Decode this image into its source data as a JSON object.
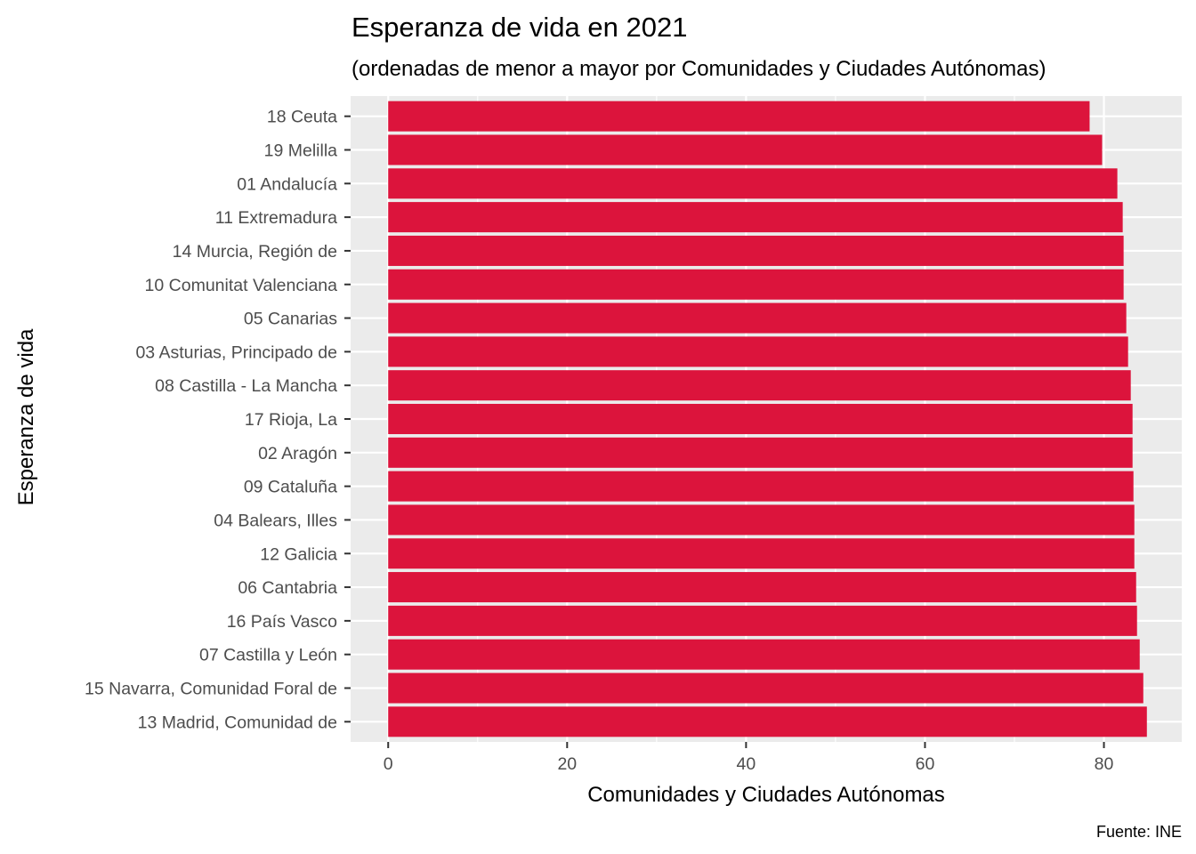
{
  "chart_data": {
    "type": "bar",
    "orientation": "horizontal",
    "title": "Esperanza de vida en 2021",
    "subtitle": "(ordenadas de menor a mayor por Comunidades y Ciudades Autónomas)",
    "xlabel": "Comunidades y Ciudades Autónomas",
    "ylabel": "Esperanza de vida",
    "caption": "Fuente: INE",
    "bar_color": "#DC143C",
    "panel_background": "#EBEBEB",
    "grid": true,
    "xlim": [
      -4.2,
      88.7
    ],
    "xticks": [
      0,
      20,
      40,
      60,
      80
    ],
    "xtick_labels": [
      "0",
      "20",
      "40",
      "60",
      "80"
    ],
    "categories": [
      "18 Ceuta",
      "19 Melilla",
      "01 Andalucía",
      "11 Extremadura",
      "14 Murcia, Región de",
      "10 Comunitat Valenciana",
      "05 Canarias",
      "03 Asturias, Principado de",
      "08 Castilla - La Mancha",
      "17 Rioja, La",
      "02 Aragón",
      "09 Cataluña",
      "04 Balears, Illes",
      "12 Galicia",
      "06 Cantabria",
      "16 País Vasco",
      "07 Castilla y León",
      "15 Navarra, Comunidad Foral de",
      "13 Madrid, Comunidad de"
    ],
    "values": [
      78.4,
      79.8,
      81.5,
      82.1,
      82.2,
      82.2,
      82.5,
      82.7,
      83.0,
      83.2,
      83.2,
      83.3,
      83.4,
      83.4,
      83.6,
      83.7,
      84.0,
      84.4,
      84.8
    ]
  }
}
